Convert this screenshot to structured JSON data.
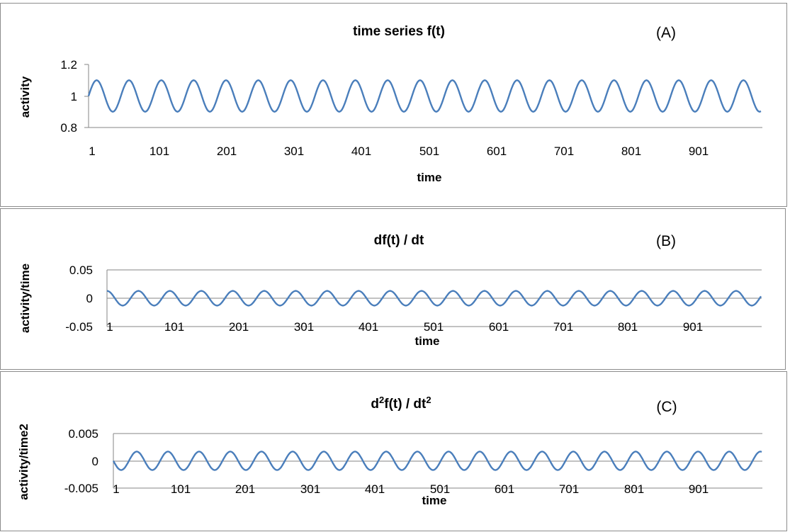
{
  "chart_data": [
    {
      "type": "line",
      "title": "time series f(t)",
      "panel_label": "(A)",
      "xlabel": "time",
      "ylabel": "activity",
      "x_tick_labels": [
        "1",
        "101",
        "201",
        "301",
        "401",
        "501",
        "601",
        "701",
        "801",
        "901"
      ],
      "y_tick_labels": [
        "1.2",
        "1",
        "0.8"
      ],
      "ylim": [
        0.8,
        1.2
      ],
      "xlim": [
        1,
        1000
      ],
      "grid": false,
      "series_color": "#4a7ebb",
      "series": [
        {
          "function": "1 + 0.1*sin(2*pi*(t-1)/48)",
          "t_start": 1,
          "t_end": 1000,
          "period": 48,
          "mean": 1.0,
          "amplitude": 0.1
        }
      ]
    },
    {
      "type": "line",
      "title": "df(t) / dt",
      "panel_label": "(B)",
      "xlabel": "time",
      "ylabel": "activity/time",
      "x_tick_labels": [
        "1",
        "101",
        "201",
        "301",
        "401",
        "501",
        "601",
        "701",
        "801",
        "901"
      ],
      "y_tick_labels": [
        "0.05",
        "0",
        "-0.05"
      ],
      "ylim": [
        -0.05,
        0.05
      ],
      "xlim": [
        1,
        1000
      ],
      "grid": "horizontal",
      "series_color": "#4a7ebb",
      "series": [
        {
          "function": "0.013*cos(2*pi*(t-1)/48)",
          "t_start": 1,
          "t_end": 1000,
          "period": 48,
          "mean": 0,
          "amplitude": 0.013
        }
      ]
    },
    {
      "type": "line",
      "title_parts": [
        "d",
        "2",
        "f(t) / dt",
        "2"
      ],
      "panel_label": "(C)",
      "xlabel": "time",
      "ylabel": "activity/time2",
      "x_tick_labels": [
        "1",
        "101",
        "201",
        "301",
        "401",
        "501",
        "601",
        "701",
        "801",
        "901"
      ],
      "y_tick_labels": [
        "0.005",
        "0",
        "-0.005"
      ],
      "ylim": [
        -0.005,
        0.005
      ],
      "xlim": [
        1,
        1000
      ],
      "grid": "horizontal",
      "series_color": "#4a7ebb",
      "series": [
        {
          "function": "-0.0017*sin(2*pi*(t-1)/48)",
          "t_start": 1,
          "t_end": 1000,
          "period": 48,
          "mean": 0,
          "amplitude": 0.0017
        }
      ]
    }
  ]
}
